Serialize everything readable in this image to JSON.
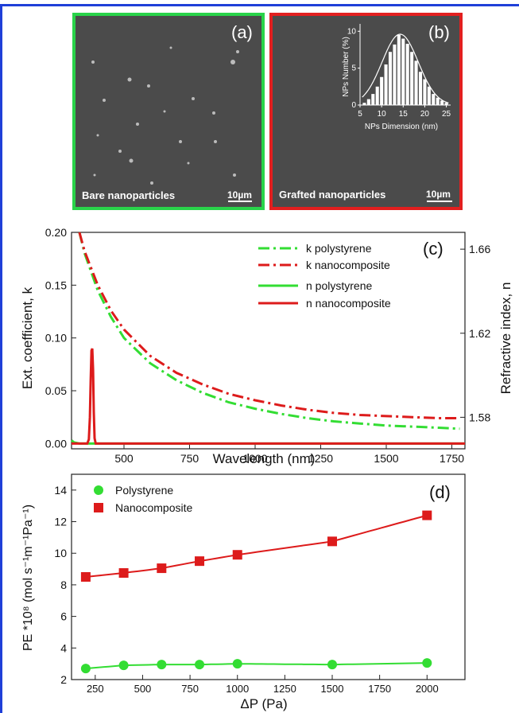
{
  "panels": {
    "a": {
      "label": "(a)",
      "caption": "Bare nanoparticles",
      "scale": "10µm"
    },
    "b": {
      "label": "(b)",
      "caption": "Grafted nanoparticles",
      "scale": "10µm"
    }
  },
  "chart_data": [
    {
      "id": "inset-b",
      "type": "bar",
      "panel": "(b)",
      "xlabel": "NPs Dimension (nm)",
      "ylabel": "NPs Number (%)",
      "xlim": [
        5,
        26
      ],
      "ylim": [
        0,
        11
      ],
      "xticks": [
        5,
        10,
        15,
        20,
        25
      ],
      "yticks": [
        0,
        5,
        10
      ],
      "x": [
        6,
        7,
        8,
        9,
        10,
        11,
        12,
        13,
        14,
        15,
        16,
        17,
        18,
        19,
        20,
        21,
        22,
        23,
        24,
        25
      ],
      "values": [
        0.3,
        0.8,
        1.5,
        2.5,
        3.8,
        5.5,
        7.2,
        8.2,
        9.5,
        9.0,
        8.3,
        7.2,
        6.0,
        4.5,
        3.5,
        2.5,
        1.5,
        1.0,
        0.6,
        0.3
      ],
      "fit": "gaussian",
      "colors": {
        "bars": "#ffffff",
        "fit": "#ffffff"
      }
    },
    {
      "id": "panel-c",
      "type": "line",
      "panel": "(c)",
      "xlabel": "Wavelength (nm)",
      "ylabel": "Ext. coefficient, k",
      "ylabel_right": "Refractive index, n",
      "xlim": [
        300,
        1800
      ],
      "ylim": [
        -0.005,
        0.2
      ],
      "ylim_right": [
        1.565,
        1.668
      ],
      "xticks": [
        500,
        750,
        1000,
        1250,
        1500,
        1750
      ],
      "yticks": [
        "0.00",
        "0.05",
        "0.10",
        "0.15",
        "0.20"
      ],
      "yticks_right": [
        "1.58",
        "1.62",
        "1.66"
      ],
      "legend_position": "top-right",
      "series": [
        {
          "name": "k polystyrene",
          "style": "dash-dot",
          "color": "#33dd33",
          "axis": "left",
          "x": [
            330,
            350,
            400,
            450,
            500,
            600,
            700,
            800,
            900,
            1000,
            1100,
            1200,
            1300,
            1400,
            1500,
            1600,
            1700,
            1780
          ],
          "y": [
            0.2,
            0.18,
            0.145,
            0.12,
            0.1,
            0.076,
            0.06,
            0.048,
            0.039,
            0.033,
            0.028,
            0.024,
            0.021,
            0.019,
            0.017,
            0.016,
            0.015,
            0.014
          ]
        },
        {
          "name": "k nanocomposite",
          "style": "dash-dot",
          "color": "#dd1b1b",
          "axis": "left",
          "x": [
            330,
            350,
            400,
            450,
            500,
            600,
            700,
            800,
            900,
            1000,
            1100,
            1200,
            1300,
            1400,
            1500,
            1600,
            1700,
            1780
          ],
          "y": [
            0.2,
            0.182,
            0.15,
            0.126,
            0.108,
            0.083,
            0.067,
            0.056,
            0.047,
            0.041,
            0.036,
            0.032,
            0.029,
            0.027,
            0.026,
            0.025,
            0.024,
            0.024
          ]
        },
        {
          "name": "n polystyrene",
          "style": "solid",
          "color": "#33dd33",
          "axis": "left",
          "x": [
            300,
            310,
            330,
            380,
            500,
            1000,
            1800
          ],
          "y": [
            0.003,
            0.001,
            0.0,
            0.0,
            0.0,
            0.0,
            0.0
          ]
        },
        {
          "name": "n nanocomposite",
          "style": "solid",
          "color": "#dd1b1b",
          "axis": "left",
          "x": [
            300,
            360,
            366,
            370,
            373,
            376,
            379,
            382,
            385,
            388,
            392,
            400,
            500,
            1000,
            1800
          ],
          "y": [
            0.0,
            0.0,
            0.004,
            0.025,
            0.06,
            0.088,
            0.09,
            0.07,
            0.03,
            0.005,
            0.0,
            0.0,
            0.0,
            0.0,
            0.0
          ]
        }
      ]
    },
    {
      "id": "panel-d",
      "type": "scatter",
      "panel": "(d)",
      "xlabel": "ΔP (Pa)",
      "ylabel": "PE *10⁸ (mol s⁻¹m⁻¹Pa⁻¹)",
      "xlim": [
        125,
        2200
      ],
      "ylim": [
        2,
        15
      ],
      "xticks": [
        250,
        500,
        750,
        1000,
        1250,
        1500,
        1750,
        2000
      ],
      "yticks": [
        2,
        4,
        6,
        8,
        10,
        12,
        14
      ],
      "legend_position": "top-left",
      "series": [
        {
          "name": "Polystyrene",
          "marker": "circle",
          "color": "#33dd33",
          "x": [
            200,
            400,
            600,
            800,
            1000,
            1500,
            2000
          ],
          "y": [
            2.7,
            2.9,
            2.95,
            2.95,
            3.0,
            2.95,
            3.05
          ]
        },
        {
          "name": "Nanocomposite",
          "marker": "square",
          "color": "#dd1b1b",
          "x": [
            200,
            400,
            600,
            800,
            1000,
            1500,
            2000
          ],
          "y": [
            8.5,
            8.75,
            9.05,
            9.5,
            9.9,
            10.75,
            12.4
          ]
        }
      ]
    }
  ]
}
